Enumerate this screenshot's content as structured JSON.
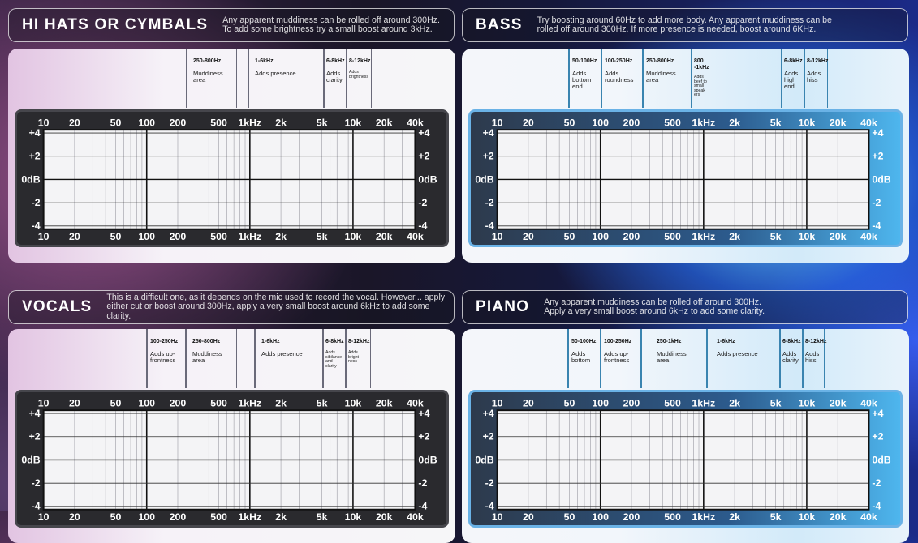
{
  "colors": {
    "pink_accent": "#b070b8",
    "blue_accent": "#3aa8f0",
    "grid_line": "#1a1a1a",
    "panel_dark": "#2a2a2e"
  },
  "freq_ticks": [
    "10",
    "20",
    "50",
    "100",
    "200",
    "500",
    "1kHz",
    "2k",
    "5k",
    "10k",
    "20k",
    "40k"
  ],
  "gain_ticks": [
    "+4",
    "+2",
    "0dB",
    "-2",
    "-4"
  ],
  "sections": [
    {
      "title": "HI HATS OR CYMBALS",
      "description": "Any apparent muddiness can be rolled off around 300Hz.\nTo add some brightness try a small boost around 3kHz.",
      "theme": "pink",
      "bands": [
        {
          "range": "250-800Hz",
          "note": "Muddiness\narea"
        },
        {
          "range": "1-6kHz",
          "note": "Adds presence"
        },
        {
          "range": "6-8kHz",
          "note": "Adds\nclarity"
        },
        {
          "range": "8-12kHz",
          "note": "Adds\nbrightness"
        }
      ]
    },
    {
      "title": "BASS",
      "description": "Try boosting around 60Hz to add more body. Any apparent muddiness can be\nrolled off around 300Hz. If more presence is needed, boost around 6KHz.",
      "theme": "blue",
      "bands": [
        {
          "range": "50-100Hz",
          "note": "Adds\nbottom\nend"
        },
        {
          "range": "100-250Hz",
          "note": "Adds\nroundness"
        },
        {
          "range": "250-800Hz",
          "note": "Muddiness\narea"
        },
        {
          "range": "800\n-1kHz",
          "note": "Adds\nbeef to\nsmall\nspeak\ners"
        },
        {
          "range": "6-8kHz",
          "note": "Adds\nhigh\nend"
        },
        {
          "range": "8-12kHz",
          "note": "Adds\nhiss"
        }
      ]
    },
    {
      "title": "VOCALS",
      "description": "This is a difficult one, as it depends on the mic used to record the vocal. However... apply\neither cut or boost around 300Hz, apply a very small boost around 6kHz to add some clarity.",
      "theme": "pink",
      "bands": [
        {
          "range": "100-250Hz",
          "note": "Adds up-\nfrontness"
        },
        {
          "range": "250-800Hz",
          "note": "Muddiness\narea"
        },
        {
          "range": "1-6kHz",
          "note": "Adds presence"
        },
        {
          "range": "6-8kHz",
          "note": "Adds\nsibilance\nand\nclarity"
        },
        {
          "range": "8-12kHz",
          "note": "Adds\nbright\nness"
        }
      ]
    },
    {
      "title": "PIANO",
      "description": "Any apparent muddiness can be rolled off around 300Hz.\nApply a very small boost around 6kHz to add some clarity.",
      "theme": "blue",
      "bands": [
        {
          "range": "50-100Hz",
          "note": "Adds\nbottom"
        },
        {
          "range": "100-250Hz",
          "note": "Adds up-\nfrontness"
        },
        {
          "range": "250-1kHz",
          "note": "Muddiness\narea"
        },
        {
          "range": "1-6kHz",
          "note": "Adds presence"
        },
        {
          "range": "6-8kHz",
          "note": "Adds\nclarity"
        },
        {
          "range": "8-12kHz",
          "note": "Adds\nhiss"
        }
      ]
    }
  ]
}
